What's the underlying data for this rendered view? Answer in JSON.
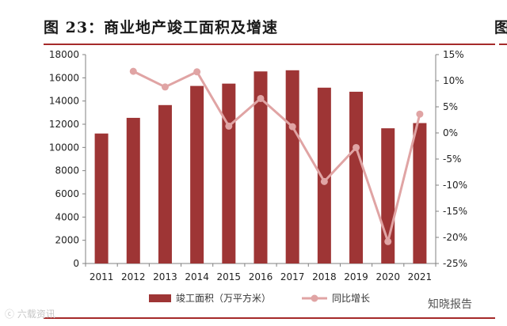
{
  "figure": {
    "title": "图 23：商业地产竣工面积及增速",
    "next_title_fragment": "图",
    "watermark_left": "ⓒ 六载资讯",
    "watermark_right": "知晓报告"
  },
  "chart_data": {
    "type": "bar",
    "title": "图 23：商业地产竣工面积及增速",
    "categories": [
      "2011",
      "2012",
      "2013",
      "2014",
      "2015",
      "2016",
      "2017",
      "2018",
      "2019",
      "2020",
      "2021"
    ],
    "series": [
      {
        "name": "竣工面积（万平方米）",
        "type": "bar",
        "axis": "left",
        "color": "#9e3535",
        "values": [
          11200,
          12550,
          13650,
          15300,
          15500,
          16550,
          16650,
          15150,
          14800,
          11650,
          12100
        ]
      },
      {
        "name": "同比增长",
        "type": "line",
        "axis": "right",
        "color": "#e0a4a4",
        "values": [
          null,
          11.8,
          8.8,
          11.7,
          1.3,
          6.6,
          1.2,
          -9.3,
          -2.8,
          -20.8,
          3.6
        ]
      }
    ],
    "y_left": {
      "min": 0,
      "max": 18000,
      "ticks": [
        0,
        2000,
        4000,
        6000,
        8000,
        10000,
        12000,
        14000,
        16000,
        18000
      ],
      "tick_labels": [
        "0",
        "2000",
        "4000",
        "6000",
        "8000",
        "10000",
        "12000",
        "14000",
        "16000",
        "18000"
      ]
    },
    "y_right": {
      "min": -25,
      "max": 15,
      "ticks": [
        15,
        10,
        5,
        0,
        -5,
        -10,
        -15,
        -20,
        -25
      ],
      "tick_labels": [
        "15%",
        "10%",
        "5%",
        "0%",
        "-5%",
        "-10%",
        "-15%",
        "-20%",
        "-25%"
      ]
    },
    "grid": false,
    "legend_position": "bottom-center"
  }
}
